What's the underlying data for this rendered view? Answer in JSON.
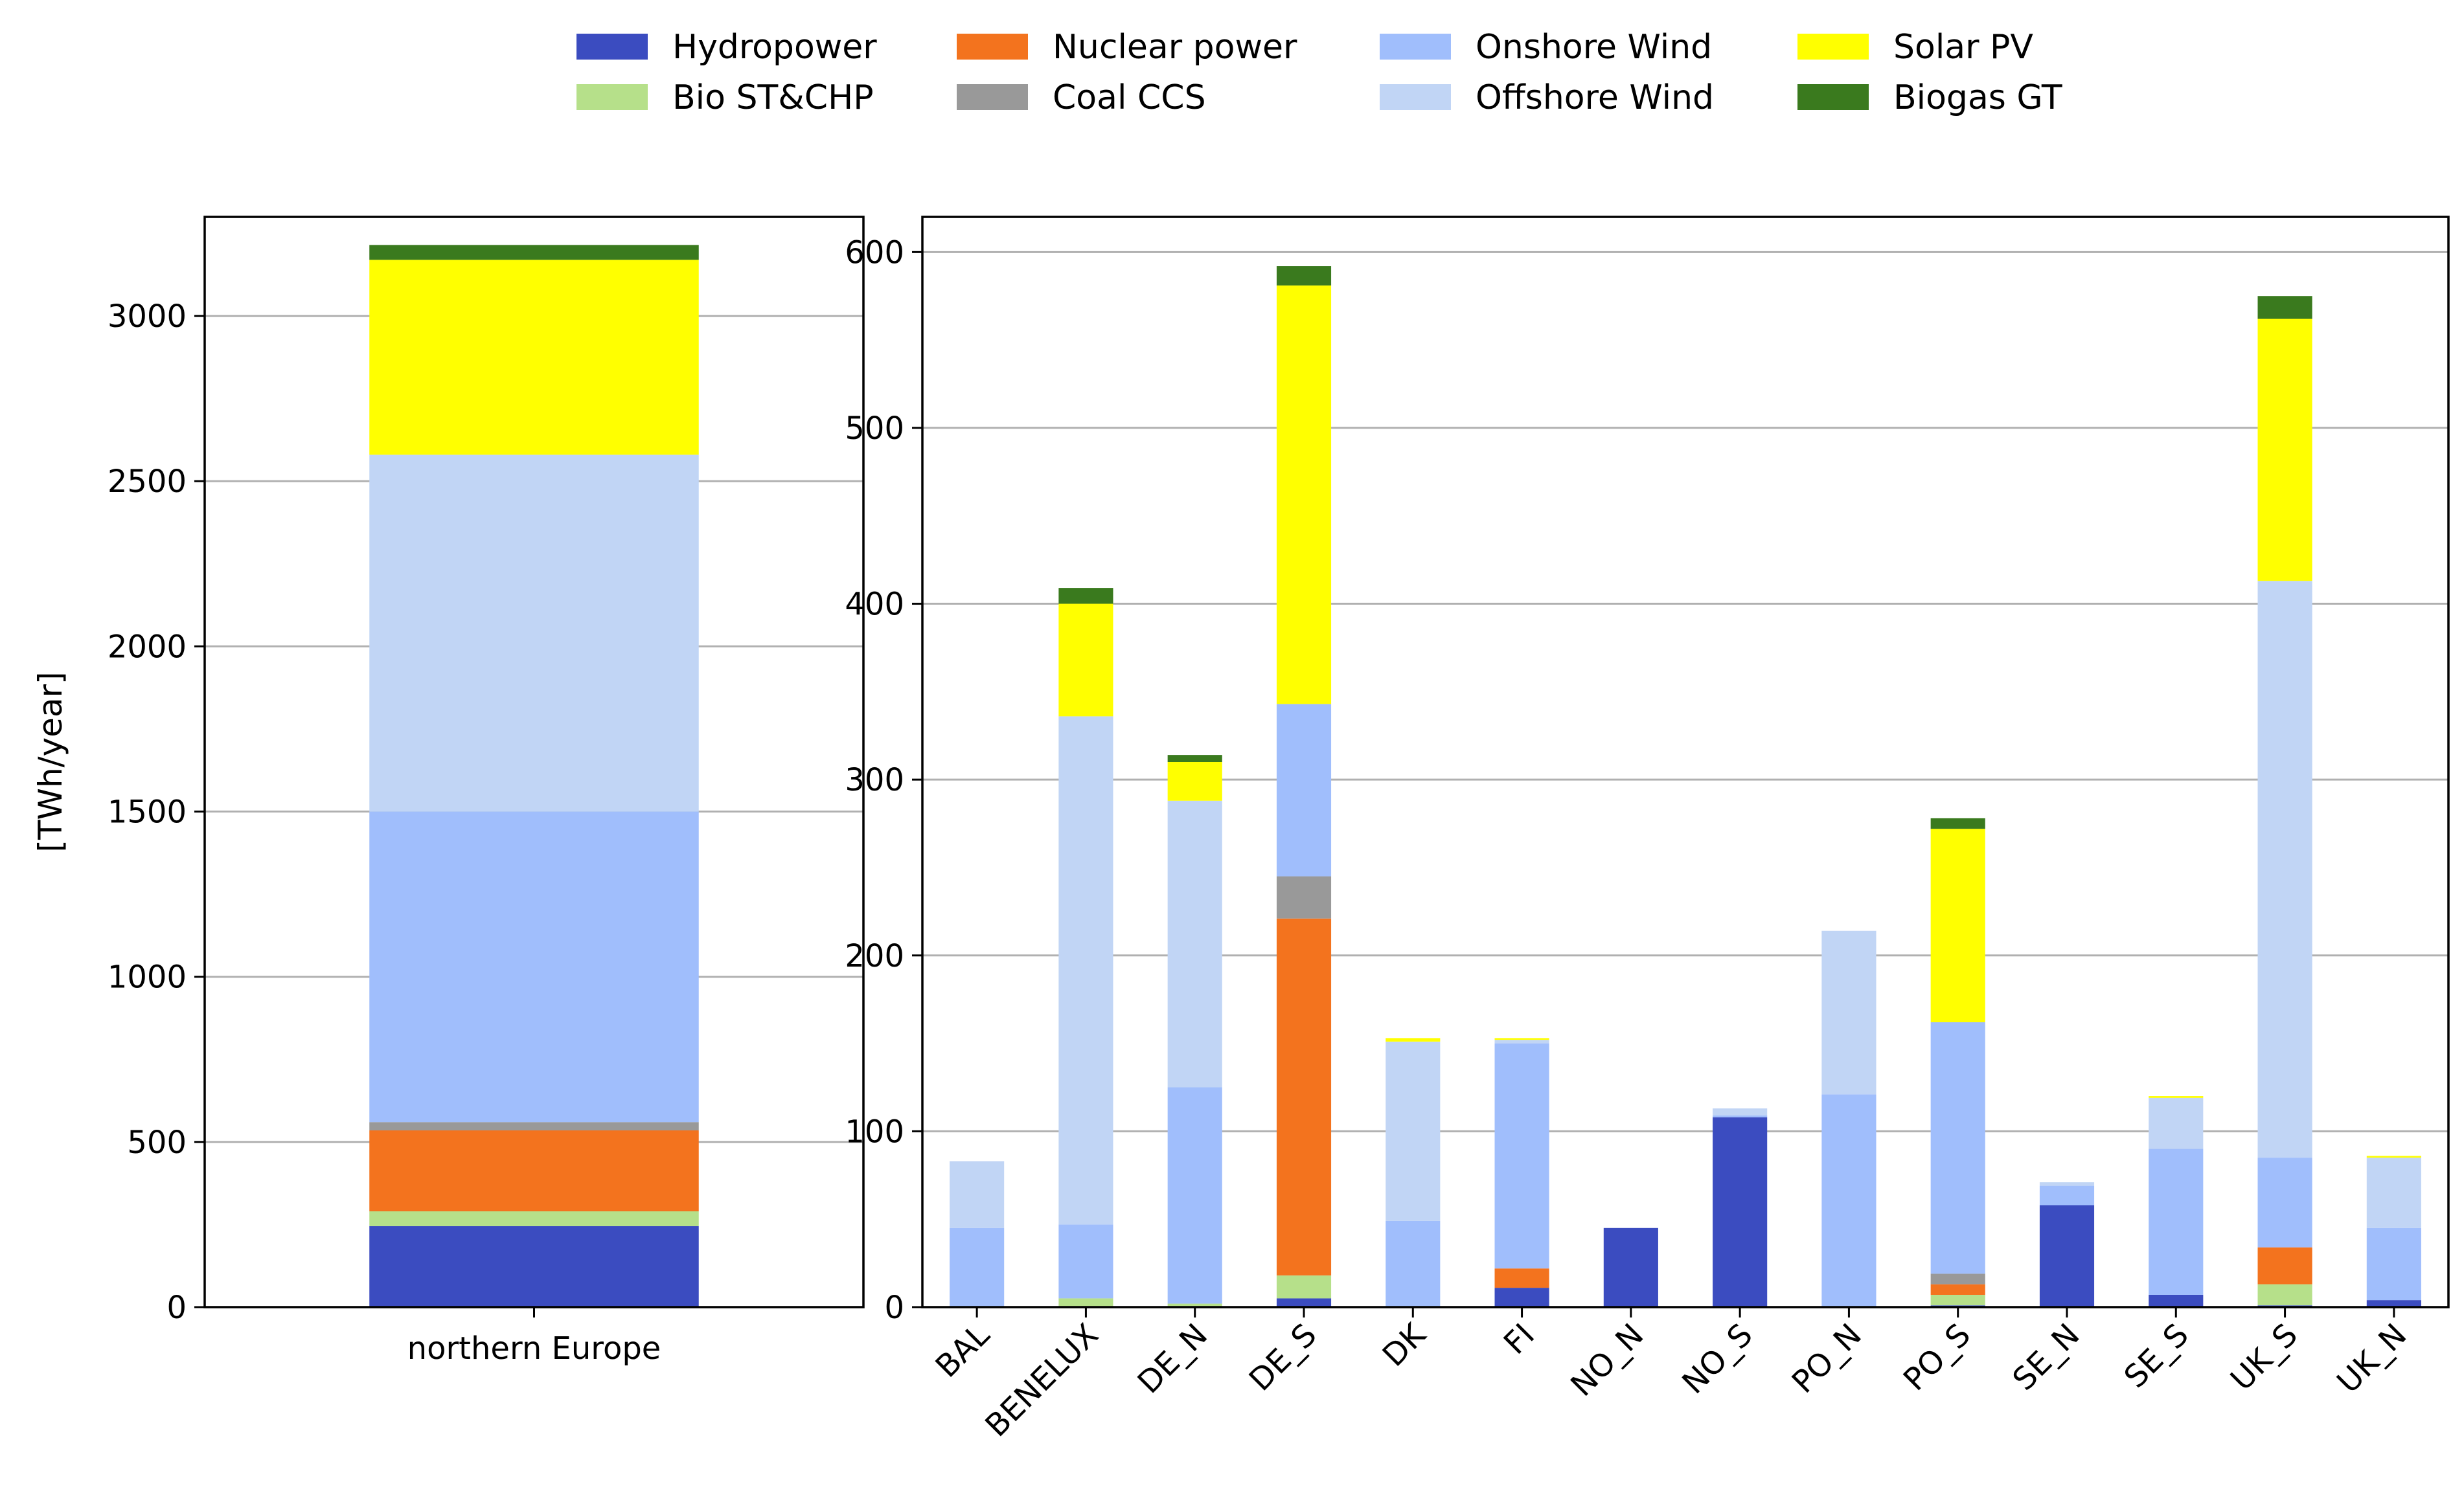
{
  "chart_data": [
    {
      "type": "bar",
      "stacked": true,
      "title": "",
      "xlabel": "",
      "ylabel": "[TWh/year]",
      "ylim": [
        0,
        3300
      ],
      "yticks": [
        0,
        500,
        1000,
        1500,
        2000,
        2500,
        3000
      ],
      "grid": "horizontal",
      "categories": [
        "northern Europe"
      ],
      "series": [
        {
          "name": "Hydropower",
          "values": [
            245
          ]
        },
        {
          "name": "Bio ST&CHP",
          "values": [
            45
          ]
        },
        {
          "name": "Nuclear power",
          "values": [
            245
          ]
        },
        {
          "name": "Coal CCS",
          "values": [
            25
          ]
        },
        {
          "name": "Onshore Wind",
          "values": [
            940
          ]
        },
        {
          "name": "Offshore Wind",
          "values": [
            1080
          ]
        },
        {
          "name": "Solar PV",
          "values": [
            590
          ]
        },
        {
          "name": "Biogas GT",
          "values": [
            45
          ]
        }
      ]
    },
    {
      "type": "bar",
      "stacked": true,
      "title": "",
      "xlabel": "",
      "ylabel": "",
      "ylim": [
        0,
        620
      ],
      "yticks": [
        0,
        100,
        200,
        300,
        400,
        500,
        600
      ],
      "grid": "horizontal",
      "categories": [
        "BAL",
        "BENELUX",
        "DE_N",
        "DE_S",
        "DK",
        "FI",
        "NO_N",
        "NO_S",
        "PO_N",
        "PO_S",
        "SE_N",
        "SE_S",
        "UK_S",
        "UK_N"
      ],
      "series": [
        {
          "name": "Hydropower",
          "values": [
            0,
            0,
            0,
            5,
            0,
            11,
            45,
            108,
            0,
            1,
            58,
            7,
            1,
            4
          ]
        },
        {
          "name": "Bio ST&CHP",
          "values": [
            0,
            5,
            2,
            13,
            0,
            0,
            0,
            0,
            0,
            6,
            0,
            0,
            12,
            0
          ]
        },
        {
          "name": "Nuclear power",
          "values": [
            0,
            0,
            0,
            203,
            0,
            11,
            0,
            0,
            0,
            6,
            0,
            0,
            21,
            0
          ]
        },
        {
          "name": "Coal CCS",
          "values": [
            0,
            0,
            0,
            24,
            0,
            0,
            0,
            0,
            0,
            6,
            0,
            0,
            0,
            0
          ]
        },
        {
          "name": "Onshore Wind",
          "values": [
            45,
            42,
            123,
            98,
            49,
            128,
            0,
            1,
            121,
            143,
            11,
            83,
            51,
            41
          ]
        },
        {
          "name": "Offshore Wind",
          "values": [
            38,
            289,
            163,
            0,
            102,
            2,
            0,
            4,
            93,
            0,
            2,
            29,
            328,
            40
          ]
        },
        {
          "name": "Solar PV",
          "values": [
            0,
            64,
            22,
            238,
            2,
            1,
            0,
            0,
            0,
            110,
            0,
            1,
            149,
            1
          ]
        },
        {
          "name": "Biogas GT",
          "values": [
            0,
            9,
            4,
            11,
            0,
            0,
            0,
            0,
            0,
            6,
            0,
            0,
            13,
            0
          ]
        }
      ]
    }
  ],
  "legend": {
    "placement": "top-center",
    "items": [
      {
        "name": "Hydropower",
        "color": "#3b4cc0"
      },
      {
        "name": "Bio ST&CHP",
        "color": "#b6e08a"
      },
      {
        "name": "Nuclear power",
        "color": "#f3731e"
      },
      {
        "name": "Coal CCS",
        "color": "#999999"
      },
      {
        "name": "Onshore Wind",
        "color": "#a0befc"
      },
      {
        "name": "Offshore Wind",
        "color": "#c1d5f5"
      },
      {
        "name": "Solar PV",
        "color": "#ffff00"
      },
      {
        "name": "Biogas GT",
        "color": "#3a7a1e"
      }
    ]
  }
}
